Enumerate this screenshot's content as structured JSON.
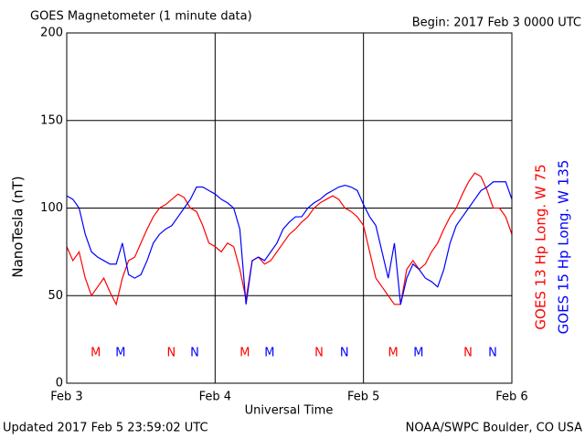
{
  "chart_data": {
    "type": "line",
    "title": "GOES Magnetometer (1 minute data)",
    "subtitle": "Begin:  2017 Feb 3 0000 UTC",
    "x_label": "Universal Time",
    "y_label": "NanoTesla (nT)",
    "footer_left": "Updated 2017 Feb  5 23:59:02 UTC",
    "footer_right": "NOAA/SWPC Boulder, CO USA",
    "x": [
      0,
      1,
      2,
      3,
      4,
      5,
      6,
      7,
      8,
      9,
      10,
      11,
      12,
      13,
      14,
      15,
      16,
      17,
      18,
      19,
      20,
      21,
      22,
      23,
      24,
      25,
      26,
      27,
      28,
      29,
      30,
      31,
      32,
      33,
      34,
      35,
      36,
      37,
      38,
      39,
      40,
      41,
      42,
      43,
      44,
      45,
      46,
      47,
      48,
      49,
      50,
      51,
      52,
      53,
      54,
      55,
      56,
      57,
      58,
      59,
      60,
      61,
      62,
      63,
      64,
      65,
      66,
      67,
      68,
      69,
      70,
      71,
      72
    ],
    "series": [
      {
        "name": "GOES 13 Hp  Long. W 75",
        "color": "#ff0000",
        "values": [
          78,
          70,
          75,
          60,
          50,
          55,
          60,
          52,
          45,
          60,
          70,
          72,
          80,
          88,
          95,
          100,
          102,
          105,
          108,
          106,
          100,
          98,
          90,
          80,
          78,
          75,
          80,
          78,
          65,
          48,
          70,
          72,
          68,
          70,
          75,
          80,
          85,
          88,
          92,
          95,
          100,
          103,
          105,
          107,
          105,
          100,
          98,
          95,
          90,
          75,
          60,
          55,
          50,
          45,
          45,
          65,
          70,
          65,
          68,
          75,
          80,
          88,
          95,
          100,
          108,
          115,
          120,
          118,
          110,
          100,
          100,
          95,
          85
        ]
      },
      {
        "name": "GOES 15 Hp  Long. W 135",
        "color": "#0000ff",
        "values": [
          107,
          105,
          100,
          85,
          75,
          72,
          70,
          68,
          68,
          80,
          62,
          60,
          62,
          70,
          80,
          85,
          88,
          90,
          95,
          100,
          105,
          112,
          112,
          110,
          108,
          105,
          103,
          100,
          88,
          45,
          70,
          72,
          70,
          75,
          80,
          88,
          92,
          95,
          95,
          100,
          103,
          105,
          108,
          110,
          112,
          113,
          112,
          110,
          102,
          95,
          90,
          75,
          60,
          80,
          45,
          60,
          68,
          65,
          60,
          58,
          55,
          65,
          80,
          90,
          95,
          100,
          105,
          110,
          112,
          115,
          115,
          115,
          105
        ]
      }
    ],
    "xlim": [
      0,
      72
    ],
    "xticks": [
      {
        "value": 0,
        "label": "Feb 3"
      },
      {
        "value": 24,
        "label": "Feb 4"
      },
      {
        "value": 48,
        "label": "Feb 5"
      },
      {
        "value": 72,
        "label": "Feb 6"
      }
    ],
    "ylim": [
      0,
      200
    ],
    "yticks": [
      0,
      50,
      100,
      150,
      200
    ],
    "grid": true,
    "annotations": [
      {
        "x": 4.7,
        "text": "M",
        "color": "#ff0000"
      },
      {
        "x": 8.7,
        "text": "M",
        "color": "#0000ff"
      },
      {
        "x": 16.9,
        "text": "N",
        "color": "#ff0000"
      },
      {
        "x": 20.7,
        "text": "N",
        "color": "#0000ff"
      },
      {
        "x": 28.8,
        "text": "M",
        "color": "#ff0000"
      },
      {
        "x": 32.8,
        "text": "M",
        "color": "#0000ff"
      },
      {
        "x": 40.8,
        "text": "N",
        "color": "#ff0000"
      },
      {
        "x": 44.9,
        "text": "N",
        "color": "#0000ff"
      },
      {
        "x": 52.8,
        "text": "M",
        "color": "#ff0000"
      },
      {
        "x": 56.9,
        "text": "M",
        "color": "#0000ff"
      },
      {
        "x": 64.9,
        "text": "N",
        "color": "#ff0000"
      },
      {
        "x": 68.9,
        "text": "N",
        "color": "#0000ff"
      }
    ]
  }
}
